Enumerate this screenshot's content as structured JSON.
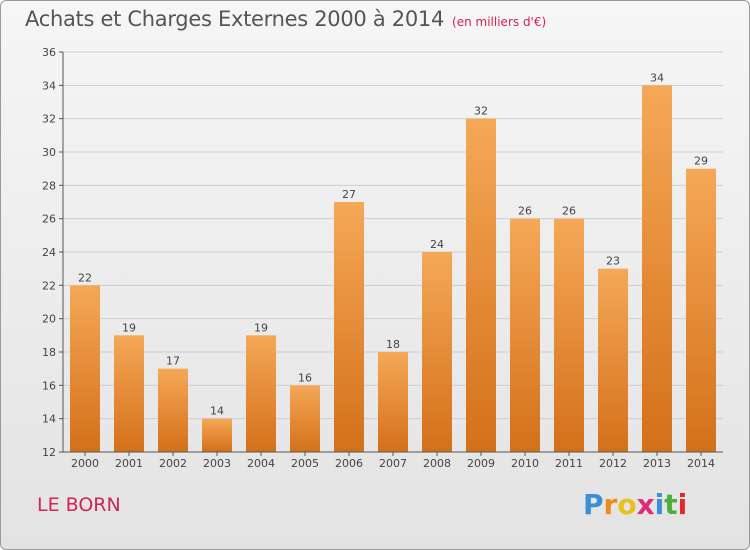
{
  "header": {
    "title": "Achats et Charges Externes 2000 à 2014",
    "subtitle": "(en milliers d'€)"
  },
  "footer": {
    "place": "LE BORN",
    "logo_letters": [
      "P",
      "r",
      "o",
      "x",
      "i",
      "t",
      "i"
    ],
    "logo_colors": [
      "#3a8fd6",
      "#f08a1c",
      "#e8c21a",
      "#e02a7a",
      "#3a8fd6",
      "#4cae3c",
      "#e02a2a"
    ]
  },
  "chart_data": {
    "type": "bar",
    "title": "Achats et Charges Externes 2000 à 2014",
    "subtitle": "(en milliers d'€)",
    "categories": [
      "2000",
      "2001",
      "2002",
      "2003",
      "2004",
      "2005",
      "2006",
      "2007",
      "2008",
      "2009",
      "2010",
      "2011",
      "2012",
      "2013",
      "2014"
    ],
    "values": [
      22,
      19,
      17,
      14,
      19,
      16,
      27,
      18,
      24,
      32,
      26,
      26,
      23,
      34,
      29
    ],
    "ylim": [
      12,
      36
    ],
    "yticks": [
      12,
      14,
      16,
      18,
      20,
      22,
      24,
      26,
      28,
      30,
      32,
      34,
      36
    ],
    "grid": true,
    "bar_color_top": "#f5a857",
    "bar_color_bottom": "#d4701a"
  }
}
